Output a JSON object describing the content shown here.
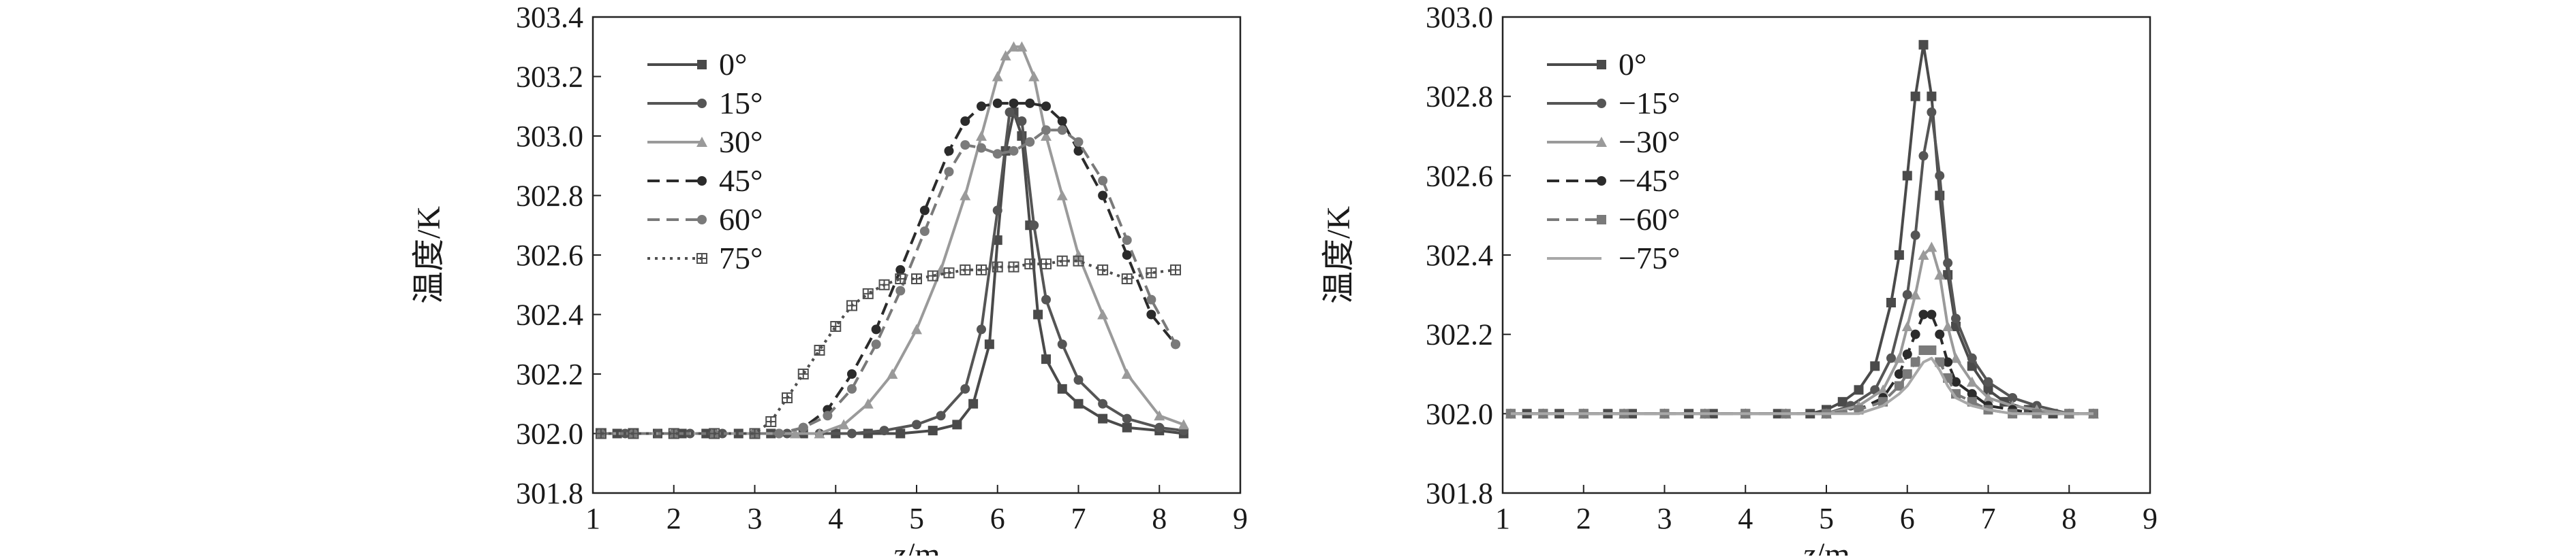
{
  "chart_data": [
    {
      "type": "line",
      "xlabel": "z/m",
      "ylabel": "温度/K",
      "xlim": [
        1,
        9
      ],
      "ylim": [
        301.8,
        303.4
      ],
      "xticks": [
        "1",
        "2",
        "3",
        "4",
        "5",
        "6",
        "7",
        "8",
        "9"
      ],
      "yticks": [
        "301.8",
        "302.0",
        "302.2",
        "302.4",
        "302.6",
        "302.8",
        "303.0",
        "303.2",
        "303.4"
      ],
      "legend_position": "top-left",
      "grid": false,
      "series": [
        {
          "name": "0°",
          "color": "#4a4a4a",
          "marker": "square",
          "dash": "solid",
          "x": [
            1.1,
            1.3,
            1.5,
            1.8,
            2.1,
            2.4,
            2.8,
            3.2,
            3.6,
            4.0,
            4.4,
            4.8,
            5.2,
            5.5,
            5.7,
            5.9,
            6.0,
            6.1,
            6.2,
            6.3,
            6.4,
            6.5,
            6.6,
            6.8,
            7.0,
            7.3,
            7.6,
            8.0,
            8.3
          ],
          "y": [
            302.0,
            302.0,
            302.0,
            302.0,
            302.0,
            302.0,
            302.0,
            302.0,
            302.0,
            302.0,
            302.0,
            302.0,
            302.01,
            302.03,
            302.1,
            302.3,
            302.65,
            302.95,
            303.08,
            303.0,
            302.7,
            302.4,
            302.25,
            302.15,
            302.1,
            302.05,
            302.02,
            302.01,
            302.0
          ]
        },
        {
          "name": "15°",
          "color": "#555555",
          "marker": "circle",
          "dash": "solid",
          "x": [
            1.1,
            1.4,
            1.8,
            2.2,
            2.6,
            3.0,
            3.4,
            3.8,
            4.2,
            4.6,
            5.0,
            5.3,
            5.6,
            5.8,
            6.0,
            6.15,
            6.3,
            6.45,
            6.6,
            6.8,
            7.0,
            7.3,
            7.6,
            8.0,
            8.3
          ],
          "y": [
            302.0,
            302.0,
            302.0,
            302.0,
            302.0,
            302.0,
            302.0,
            302.0,
            302.0,
            302.01,
            302.03,
            302.06,
            302.15,
            302.35,
            302.75,
            303.08,
            303.05,
            302.7,
            302.45,
            302.3,
            302.18,
            302.1,
            302.05,
            302.02,
            302.01
          ]
        },
        {
          "name": "30°",
          "color": "#9a9a9a",
          "marker": "triangle",
          "dash": "solid",
          "x": [
            1.1,
            1.5,
            2.0,
            2.5,
            3.0,
            3.5,
            3.8,
            4.1,
            4.4,
            4.7,
            5.0,
            5.3,
            5.6,
            5.8,
            6.0,
            6.1,
            6.2,
            6.3,
            6.45,
            6.6,
            6.8,
            7.0,
            7.3,
            7.6,
            8.0,
            8.3
          ],
          "y": [
            302.0,
            302.0,
            302.0,
            302.0,
            302.0,
            302.0,
            302.0,
            302.03,
            302.1,
            302.2,
            302.35,
            302.55,
            302.8,
            303.0,
            303.2,
            303.27,
            303.3,
            303.3,
            303.2,
            303.0,
            302.8,
            302.6,
            302.4,
            302.2,
            302.06,
            302.03
          ]
        },
        {
          "name": "45°",
          "color": "#2b2b2b",
          "marker": "circle",
          "dash": "dashed",
          "x": [
            1.1,
            1.5,
            2.0,
            2.5,
            3.0,
            3.3,
            3.6,
            3.9,
            4.2,
            4.5,
            4.8,
            5.1,
            5.4,
            5.6,
            5.8,
            6.0,
            6.2,
            6.4,
            6.6,
            6.8,
            7.0,
            7.3,
            7.6,
            7.9,
            8.2
          ],
          "y": [
            302.0,
            302.0,
            302.0,
            302.0,
            302.0,
            302.0,
            302.02,
            302.08,
            302.2,
            302.35,
            302.55,
            302.75,
            302.95,
            303.05,
            303.1,
            303.11,
            303.11,
            303.11,
            303.1,
            303.05,
            302.95,
            302.8,
            302.6,
            302.4,
            302.3
          ]
        },
        {
          "name": "60°",
          "color": "#7a7a7a",
          "marker": "circle",
          "dash": "dashed",
          "x": [
            1.1,
            1.5,
            2.0,
            2.5,
            3.0,
            3.3,
            3.6,
            3.9,
            4.2,
            4.5,
            4.8,
            5.1,
            5.4,
            5.6,
            5.8,
            6.0,
            6.2,
            6.4,
            6.6,
            6.8,
            7.0,
            7.3,
            7.6,
            7.9,
            8.2
          ],
          "y": [
            302.0,
            302.0,
            302.0,
            302.0,
            302.0,
            302.0,
            302.02,
            302.06,
            302.15,
            302.3,
            302.48,
            302.68,
            302.88,
            302.97,
            302.96,
            302.94,
            302.95,
            302.98,
            303.02,
            303.02,
            302.98,
            302.85,
            302.65,
            302.45,
            302.3
          ]
        },
        {
          "name": "75°",
          "color": "#4f4f4f",
          "marker": "plus",
          "dash": "dotted",
          "x": [
            1.1,
            1.5,
            2.0,
            2.5,
            3.0,
            3.2,
            3.4,
            3.6,
            3.8,
            4.0,
            4.2,
            4.4,
            4.6,
            4.8,
            5.0,
            5.2,
            5.4,
            5.6,
            5.8,
            6.0,
            6.2,
            6.4,
            6.6,
            6.8,
            7.0,
            7.3,
            7.6,
            7.9,
            8.2
          ],
          "y": [
            302.0,
            302.0,
            302.0,
            302.0,
            302.0,
            302.04,
            302.12,
            302.2,
            302.28,
            302.36,
            302.43,
            302.47,
            302.5,
            302.52,
            302.52,
            302.53,
            302.54,
            302.55,
            302.55,
            302.56,
            302.56,
            302.57,
            302.57,
            302.58,
            302.58,
            302.55,
            302.52,
            302.54,
            302.55
          ]
        }
      ]
    },
    {
      "type": "line",
      "xlabel": "z/m",
      "ylabel": "温度/K",
      "xlim": [
        1,
        9
      ],
      "ylim": [
        301.8,
        303.0
      ],
      "xticks": [
        "1",
        "2",
        "3",
        "4",
        "5",
        "6",
        "7",
        "8",
        "9"
      ],
      "yticks": [
        "301.8",
        "302.0",
        "302.2",
        "302.4",
        "302.6",
        "302.8",
        "303.0"
      ],
      "legend_position": "top-left",
      "grid": false,
      "series": [
        {
          "name": "0°",
          "color": "#4a4a4a",
          "marker": "square",
          "dash": "solid",
          "x": [
            1.1,
            1.3,
            1.5,
            1.7,
            2.0,
            2.3,
            2.6,
            3.0,
            3.3,
            3.6,
            4.0,
            4.4,
            4.8,
            5.0,
            5.2,
            5.4,
            5.6,
            5.8,
            5.9,
            6.0,
            6.1,
            6.2,
            6.3,
            6.4,
            6.5,
            6.6,
            6.8,
            7.0,
            7.2,
            7.5,
            7.8,
            8.0,
            8.3
          ],
          "y": [
            302.0,
            302.0,
            302.0,
            302.0,
            302.0,
            302.0,
            302.0,
            302.0,
            302.0,
            302.0,
            302.0,
            302.0,
            302.0,
            302.01,
            302.03,
            302.06,
            302.12,
            302.28,
            302.4,
            302.6,
            302.8,
            302.93,
            302.8,
            302.55,
            302.35,
            302.22,
            302.12,
            302.06,
            302.03,
            302.01,
            302.0,
            302.0,
            302.0
          ]
        },
        {
          "name": "−15°",
          "color": "#555555",
          "marker": "circle",
          "dash": "solid",
          "x": [
            1.1,
            1.5,
            2.0,
            2.5,
            3.0,
            3.5,
            4.0,
            4.5,
            5.0,
            5.3,
            5.6,
            5.8,
            6.0,
            6.1,
            6.2,
            6.3,
            6.4,
            6.5,
            6.6,
            6.8,
            7.0,
            7.3,
            7.6,
            8.0,
            8.3
          ],
          "y": [
            302.0,
            302.0,
            302.0,
            302.0,
            302.0,
            302.0,
            302.0,
            302.0,
            302.0,
            302.02,
            302.06,
            302.14,
            302.3,
            302.45,
            302.65,
            302.76,
            302.6,
            302.38,
            302.24,
            302.14,
            302.08,
            302.04,
            302.02,
            302.0,
            302.0
          ]
        },
        {
          "name": "−30°",
          "color": "#9a9a9a",
          "marker": "triangle",
          "dash": "solid",
          "x": [
            1.1,
            1.5,
            2.0,
            2.5,
            3.0,
            3.5,
            4.0,
            4.5,
            5.0,
            5.4,
            5.7,
            5.9,
            6.0,
            6.1,
            6.2,
            6.3,
            6.4,
            6.5,
            6.6,
            6.8,
            7.0,
            7.3,
            7.6,
            8.0,
            8.3
          ],
          "y": [
            302.0,
            302.0,
            302.0,
            302.0,
            302.0,
            302.0,
            302.0,
            302.0,
            302.0,
            302.02,
            302.06,
            302.14,
            302.22,
            302.3,
            302.4,
            302.42,
            302.35,
            302.22,
            302.14,
            302.08,
            302.04,
            302.02,
            302.01,
            302.0,
            302.0
          ]
        },
        {
          "name": "−45°",
          "color": "#2b2b2b",
          "marker": "circle",
          "dash": "dashed",
          "x": [
            1.1,
            1.5,
            2.0,
            2.5,
            3.0,
            3.5,
            4.0,
            4.5,
            5.0,
            5.4,
            5.7,
            5.9,
            6.0,
            6.1,
            6.2,
            6.3,
            6.4,
            6.5,
            6.6,
            6.8,
            7.0,
            7.3,
            7.6,
            8.0,
            8.3
          ],
          "y": [
            302.0,
            302.0,
            302.0,
            302.0,
            302.0,
            302.0,
            302.0,
            302.0,
            302.0,
            302.01,
            302.04,
            302.1,
            302.15,
            302.2,
            302.25,
            302.25,
            302.2,
            302.13,
            302.08,
            302.05,
            302.02,
            302.01,
            302.0,
            302.0,
            302.0
          ]
        },
        {
          "name": "−60°",
          "color": "#7a7a7a",
          "marker": "square",
          "dash": "dashed",
          "x": [
            1.1,
            1.5,
            2.0,
            2.5,
            3.0,
            3.5,
            4.0,
            4.5,
            5.0,
            5.4,
            5.7,
            5.9,
            6.0,
            6.1,
            6.2,
            6.3,
            6.4,
            6.5,
            6.6,
            6.8,
            7.0,
            7.3,
            7.6,
            8.0,
            8.3
          ],
          "y": [
            302.0,
            302.0,
            302.0,
            302.0,
            302.0,
            302.0,
            302.0,
            302.0,
            302.0,
            302.01,
            302.03,
            302.07,
            302.1,
            302.13,
            302.16,
            302.16,
            302.13,
            302.09,
            302.05,
            302.03,
            302.01,
            302.0,
            302.0,
            302.0,
            302.0
          ]
        },
        {
          "name": "−75°",
          "color": "#a8a8a8",
          "marker": "none",
          "dash": "solid",
          "x": [
            1.1,
            1.5,
            2.0,
            2.5,
            3.0,
            3.5,
            4.0,
            4.5,
            5.0,
            5.4,
            5.7,
            5.9,
            6.0,
            6.1,
            6.2,
            6.3,
            6.4,
            6.5,
            6.6,
            6.8,
            7.0,
            7.3,
            7.6,
            8.0,
            8.3
          ],
          "y": [
            302.0,
            302.0,
            302.0,
            302.0,
            302.0,
            302.0,
            302.0,
            302.0,
            302.0,
            302.0,
            302.02,
            302.05,
            302.07,
            302.1,
            302.13,
            302.14,
            302.11,
            302.07,
            302.04,
            302.02,
            302.01,
            302.0,
            302.0,
            302.0,
            302.0
          ]
        }
      ]
    }
  ]
}
